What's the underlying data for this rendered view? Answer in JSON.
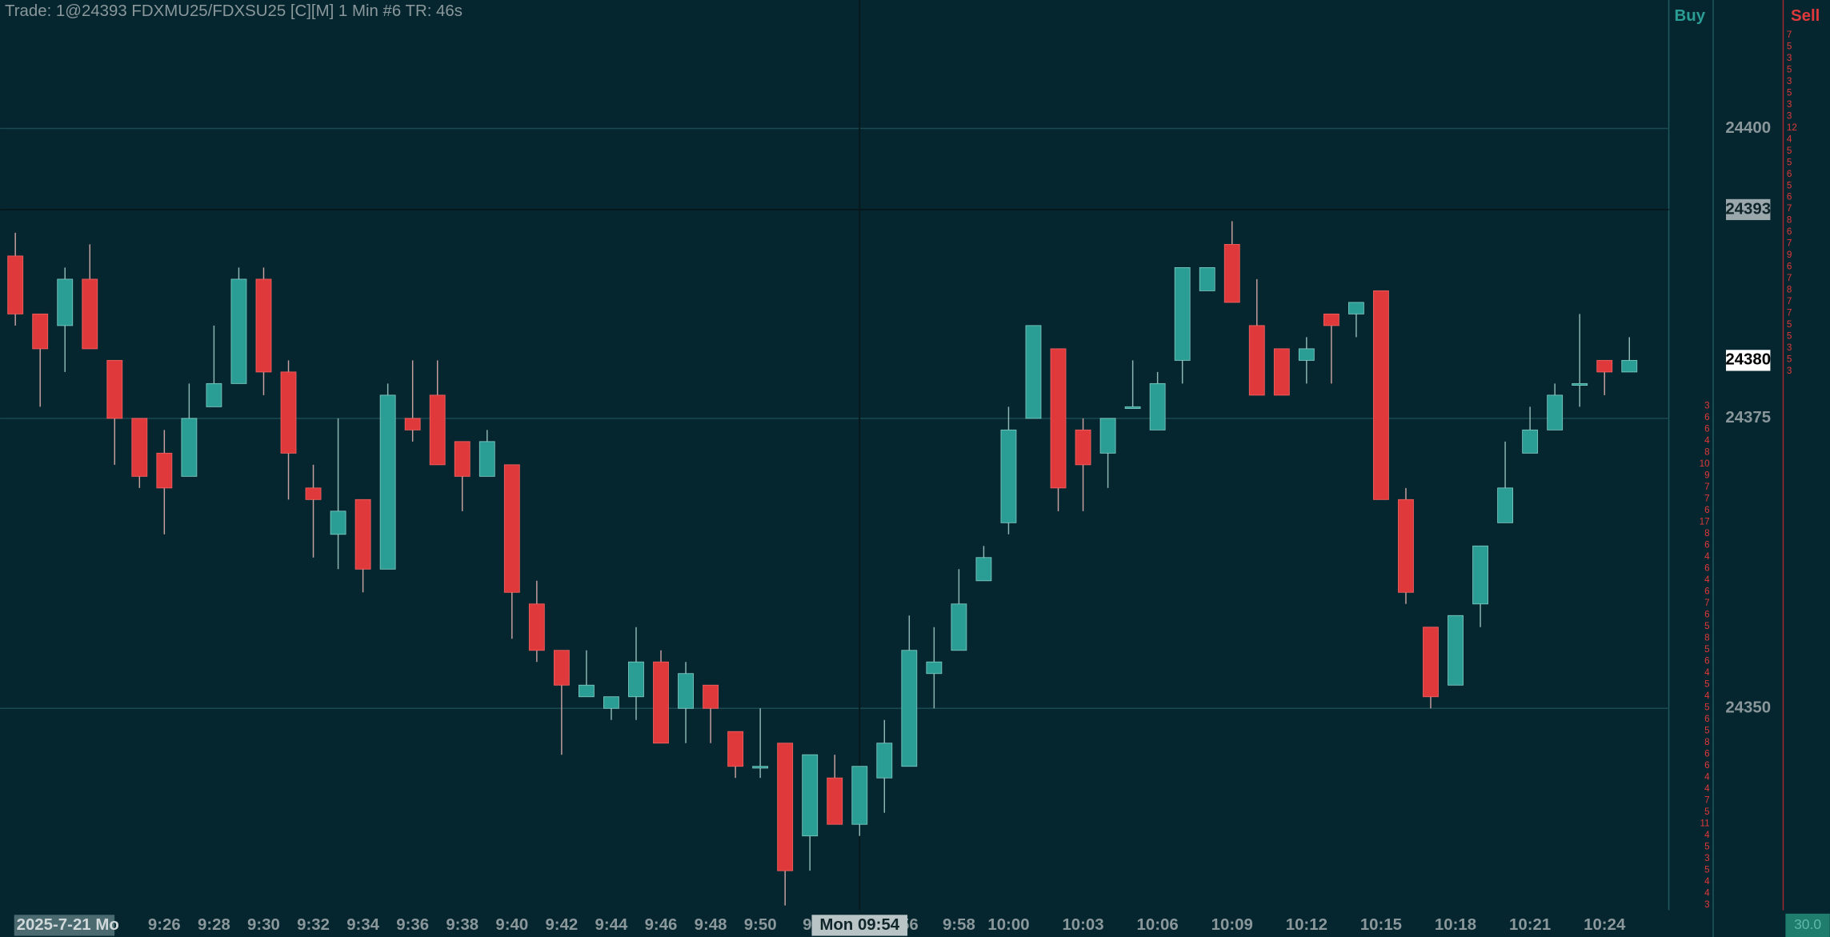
{
  "chart_data": {
    "type": "candlestick",
    "header": "Trade: 1@24393 FDXMU25/FDXSU25 [C][M]  1 Min  #6 TR: 46s",
    "date_label": "2025-7-21 Mo",
    "crosshair_time": "Mon 09:54",
    "crosshair_price": 24393,
    "last_price": 24380,
    "buy_label": "Buy",
    "sell_label": "Sell",
    "corner_label": "30.0",
    "up_color": "#2a9d94",
    "down_color": "#e0393b",
    "grid": true,
    "ylim": [
      24332.6,
      24411.07
    ],
    "yticks": [
      24350,
      24375,
      24400
    ],
    "categories": [
      null,
      null,
      null,
      null,
      null,
      null,
      "9:26",
      null,
      "9:28",
      null,
      "9:30",
      null,
      "9:32",
      null,
      "9:34",
      null,
      "9:36",
      null,
      "9:38",
      null,
      "9:40",
      null,
      "9:42",
      null,
      "9:44",
      null,
      "9:46",
      null,
      "9:48",
      null,
      "9:50",
      null,
      "9:",
      null,
      null,
      null,
      "56",
      null,
      "9:58",
      null,
      "10:00",
      null,
      null,
      "10:03",
      null,
      null,
      "10:06",
      null,
      null,
      "10:09",
      null,
      null,
      "10:12",
      null,
      null,
      "10:15",
      null,
      null,
      "10:18",
      null,
      null,
      "10:21",
      null,
      null,
      "10:24",
      null
    ],
    "open": [
      24389,
      24384,
      24383,
      24387,
      24380,
      24375,
      24372,
      24370,
      24376,
      24378,
      24387,
      24379,
      24369,
      24365,
      24368,
      24362,
      24375,
      24377,
      24373,
      24370,
      24371,
      24359,
      24355,
      24351,
      24350,
      24351,
      24354,
      24350,
      24352,
      24348,
      24345,
      24347,
      24339,
      24344,
      24340,
      24344,
      24345,
      24353,
      24355,
      24361,
      24366,
      24375,
      24381,
      24374,
      24372,
      24376,
      24374,
      24380,
      24386,
      24390,
      24383,
      24381,
      24380,
      24384,
      24384,
      24386,
      24368,
      24357,
      24352,
      24359,
      24366,
      24372,
      24374,
      24378,
      24380,
      24379
    ],
    "high": [
      24391,
      24384,
      24388,
      24390,
      24380,
      24375,
      24374,
      24378,
      24383,
      24388,
      24388,
      24380,
      24371,
      24375,
      24368,
      24378,
      24380,
      24380,
      24373,
      24374,
      24371,
      24361,
      24355,
      24355,
      24351,
      24357,
      24355,
      24354,
      24352,
      24348,
      24350,
      24347,
      24346,
      24346,
      24345,
      24349,
      24358,
      24357,
      24362,
      24364,
      24376,
      24383,
      24381,
      24375,
      24375,
      24380,
      24379,
      24388,
      24388,
      24392,
      24387,
      24381,
      24382,
      24384,
      24385,
      24386,
      24369,
      24357,
      24358,
      24364,
      24373,
      24376,
      24378,
      24384,
      24380,
      24382
    ],
    "low": [
      24383,
      24376,
      24379,
      24381,
      24371,
      24369,
      24365,
      24370,
      24376,
      24378,
      24377,
      24368,
      24363,
      24362,
      24360,
      24362,
      24373,
      24371,
      24367,
      24370,
      24356,
      24354,
      24346,
      24351,
      24349,
      24349,
      24347,
      24347,
      24347,
      24344,
      24344,
      24333,
      24336,
      24340,
      24339,
      24341,
      24345,
      24350,
      24355,
      24361,
      24365,
      24375,
      24367,
      24367,
      24369,
      24376,
      24374,
      24378,
      24386,
      24385,
      24377,
      24377,
      24378,
      24378,
      24382,
      24368,
      24359,
      24350,
      24352,
      24357,
      24366,
      24372,
      24374,
      24376,
      24377,
      24379
    ],
    "close": [
      24384,
      24381,
      24387,
      24381,
      24375,
      24370,
      24369,
      24375,
      24378,
      24387,
      24379,
      24372,
      24368,
      24367,
      24362,
      24377,
      24374,
      24371,
      24370,
      24373,
      24360,
      24355,
      24352,
      24352,
      24351,
      24354,
      24347,
      24353,
      24350,
      24345,
      24345,
      24336,
      24346,
      24340,
      24345,
      24347,
      24355,
      24354,
      24359,
      24363,
      24374,
      24383,
      24369,
      24371,
      24375,
      24376,
      24378,
      24388,
      24388,
      24385,
      24377,
      24377,
      24381,
      24383,
      24385,
      24368,
      24360,
      24351,
      24358,
      24364,
      24369,
      24374,
      24377,
      24378,
      24379,
      24380
    ],
    "buy_ladder": [
      3,
      6,
      6,
      4,
      8,
      10,
      9,
      7,
      7,
      6,
      17,
      8,
      6,
      4,
      6,
      4,
      6,
      7,
      6,
      5,
      8,
      5,
      6,
      4,
      5,
      4,
      5,
      6,
      5,
      8,
      6,
      6,
      4,
      4,
      7,
      5,
      11,
      4,
      5,
      3,
      5,
      4,
      4,
      3
    ],
    "sell_ladder": [
      7,
      5,
      3,
      5,
      3,
      5,
      3,
      3,
      12,
      4,
      5,
      5,
      6,
      5,
      6,
      7,
      8,
      6,
      7,
      9,
      6,
      7,
      8,
      7,
      7,
      5,
      5,
      3,
      5,
      3
    ]
  }
}
